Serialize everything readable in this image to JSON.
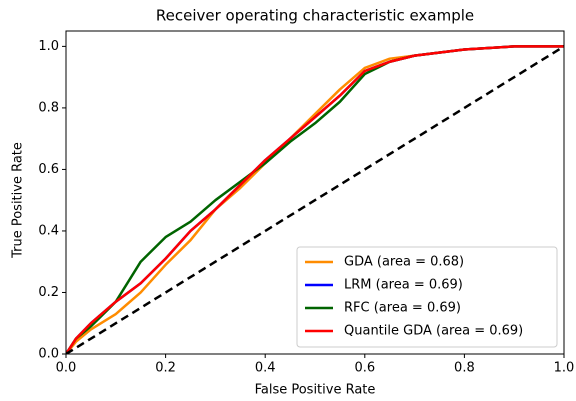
{
  "chart_data": {
    "type": "line",
    "title": "Receiver operating characteristic example",
    "xlabel": "False Positive Rate",
    "ylabel": "True Positive Rate",
    "xlim": [
      0,
      1
    ],
    "ylim": [
      0,
      1.05
    ],
    "xticks": [
      {
        "value": 0,
        "label": "0.0"
      },
      {
        "value": 0.2,
        "label": "0.2"
      },
      {
        "value": 0.4,
        "label": "0.4"
      },
      {
        "value": 0.6,
        "label": "0.6"
      },
      {
        "value": 0.8,
        "label": "0.8"
      },
      {
        "value": 1,
        "label": "1.0"
      }
    ],
    "yticks": [
      {
        "value": 0,
        "label": "0.0"
      },
      {
        "value": 0.2,
        "label": "0.2"
      },
      {
        "value": 0.4,
        "label": "0.4"
      },
      {
        "value": 0.6,
        "label": "0.6"
      },
      {
        "value": 0.8,
        "label": "0.8"
      },
      {
        "value": 1,
        "label": "1.0"
      }
    ],
    "legend": "lower right",
    "series": [
      {
        "name": "GDA (area = 0.68)",
        "color": "#ff8c00",
        "x": [
          0,
          0.02,
          0.05,
          0.1,
          0.15,
          0.2,
          0.25,
          0.3,
          0.35,
          0.4,
          0.45,
          0.5,
          0.55,
          0.6,
          0.65,
          0.7,
          0.8,
          0.9,
          1
        ],
        "values": [
          0,
          0.04,
          0.08,
          0.13,
          0.2,
          0.29,
          0.37,
          0.47,
          0.54,
          0.62,
          0.7,
          0.78,
          0.86,
          0.93,
          0.96,
          0.97,
          0.99,
          1,
          1
        ]
      },
      {
        "name": "LRM (area = 0.69)",
        "color": "#0000ff",
        "x": [
          0,
          0.02,
          0.05,
          0.1,
          0.15,
          0.2,
          0.25,
          0.3,
          0.35,
          0.4,
          0.45,
          0.5,
          0.55,
          0.6,
          0.65,
          0.7,
          0.8,
          0.9,
          1
        ],
        "values": [
          0,
          0.05,
          0.1,
          0.17,
          0.23,
          0.31,
          0.4,
          0.47,
          0.55,
          0.63,
          0.7,
          0.77,
          0.84,
          0.92,
          0.95,
          0.97,
          0.99,
          1,
          1
        ]
      },
      {
        "name": "RFC (area = 0.69)",
        "color": "#006400",
        "x": [
          0,
          0.02,
          0.05,
          0.1,
          0.15,
          0.2,
          0.25,
          0.3,
          0.35,
          0.4,
          0.45,
          0.5,
          0.55,
          0.6,
          0.65,
          0.7,
          0.8,
          0.9,
          1
        ],
        "values": [
          0,
          0.05,
          0.09,
          0.17,
          0.3,
          0.38,
          0.43,
          0.5,
          0.56,
          0.62,
          0.69,
          0.75,
          0.82,
          0.91,
          0.95,
          0.97,
          0.99,
          1,
          1
        ]
      },
      {
        "name": "Quantile GDA (area = 0.69)",
        "color": "#ff0000",
        "x": [
          0,
          0.02,
          0.05,
          0.1,
          0.15,
          0.2,
          0.25,
          0.3,
          0.35,
          0.4,
          0.45,
          0.5,
          0.55,
          0.6,
          0.65,
          0.7,
          0.8,
          0.9,
          1
        ],
        "values": [
          0,
          0.05,
          0.1,
          0.17,
          0.23,
          0.31,
          0.4,
          0.47,
          0.55,
          0.63,
          0.7,
          0.77,
          0.84,
          0.92,
          0.95,
          0.97,
          0.99,
          1,
          1
        ]
      },
      {
        "color": "#000000",
        "linestyle": "dashed",
        "x": [
          0,
          1
        ],
        "values": [
          0,
          1
        ]
      }
    ]
  }
}
